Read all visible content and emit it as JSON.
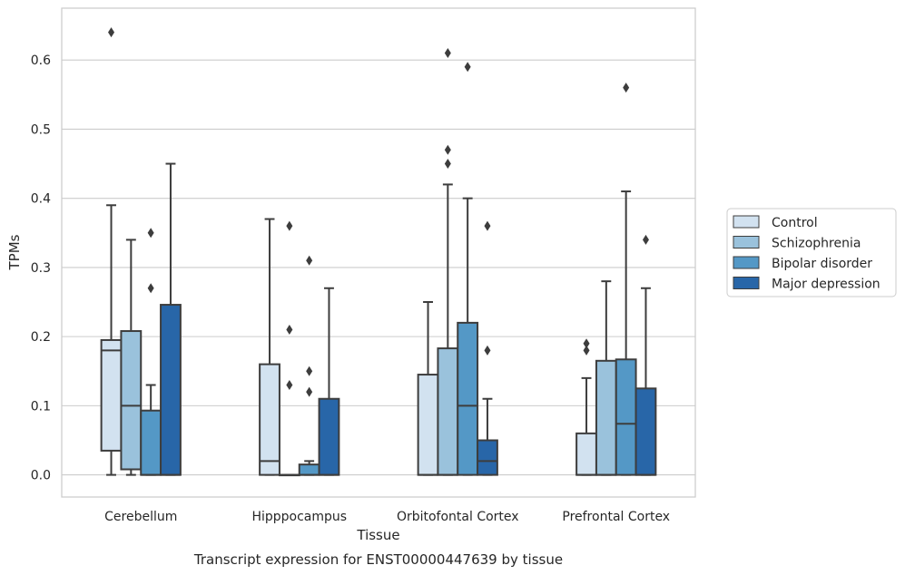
{
  "chart_data": {
    "type": "box",
    "title": "Transcript expression for ENST00000447639 by tissue",
    "xlabel": "Tissue",
    "ylabel": "TPMs",
    "ylim": [
      -0.032,
      0.675
    ],
    "yticks": [
      0.0,
      0.1,
      0.2,
      0.3,
      0.4,
      0.5,
      0.6
    ],
    "ytick_labels": [
      "0.0",
      "0.1",
      "0.2",
      "0.3",
      "0.4",
      "0.5",
      "0.6"
    ],
    "grid": true,
    "legend_position": "right",
    "categories": [
      "Cerebellum",
      "Hipppocampus",
      "Orbitofontal Cortex",
      "Prefrontal Cortex"
    ],
    "series": [
      {
        "name": "Control",
        "color": "#d2e2f0",
        "boxes": [
          {
            "q1": 0.035,
            "median": 0.18,
            "q3": 0.195,
            "whisker_low": 0.0,
            "whisker_high": 0.39,
            "outliers": [
              0.64
            ]
          },
          {
            "q1": 0.0,
            "median": 0.02,
            "q3": 0.16,
            "whisker_low": 0.0,
            "whisker_high": 0.37,
            "outliers": []
          },
          {
            "q1": 0.0,
            "median": 0.0,
            "q3": 0.145,
            "whisker_low": 0.0,
            "whisker_high": 0.25,
            "outliers": []
          },
          {
            "q1": 0.0,
            "median": 0.0,
            "q3": 0.06,
            "whisker_low": 0.0,
            "whisker_high": 0.14,
            "outliers": [
              0.18,
              0.19
            ]
          }
        ]
      },
      {
        "name": "Schizophrenia",
        "color": "#9ac2dc",
        "boxes": [
          {
            "q1": 0.008,
            "median": 0.1,
            "q3": 0.208,
            "whisker_low": 0.0,
            "whisker_high": 0.34,
            "outliers": []
          },
          {
            "q1": 0.0,
            "median": 0.0,
            "q3": 0.0,
            "whisker_low": 0.0,
            "whisker_high": 0.0,
            "outliers": [
              0.13,
              0.21,
              0.36
            ]
          },
          {
            "q1": 0.0,
            "median": 0.0,
            "q3": 0.183,
            "whisker_low": 0.0,
            "whisker_high": 0.42,
            "outliers": [
              0.45,
              0.47,
              0.61
            ]
          },
          {
            "q1": 0.0,
            "median": 0.0,
            "q3": 0.165,
            "whisker_low": 0.0,
            "whisker_high": 0.28,
            "outliers": []
          }
        ]
      },
      {
        "name": "Bipolar disorder",
        "color": "#5498c6",
        "boxes": [
          {
            "q1": 0.0,
            "median": 0.0,
            "q3": 0.093,
            "whisker_low": 0.0,
            "whisker_high": 0.13,
            "outliers": [
              0.27,
              0.35
            ]
          },
          {
            "q1": 0.0,
            "median": 0.0,
            "q3": 0.015,
            "whisker_low": 0.0,
            "whisker_high": 0.02,
            "outliers": [
              0.12,
              0.15,
              0.31
            ]
          },
          {
            "q1": 0.0,
            "median": 0.1,
            "q3": 0.22,
            "whisker_low": 0.0,
            "whisker_high": 0.4,
            "outliers": [
              0.59
            ]
          },
          {
            "q1": 0.0,
            "median": 0.074,
            "q3": 0.167,
            "whisker_low": 0.0,
            "whisker_high": 0.41,
            "outliers": [
              0.56
            ]
          }
        ]
      },
      {
        "name": "Major depression",
        "color": "#2866a8",
        "boxes": [
          {
            "q1": 0.0,
            "median": 0.0,
            "q3": 0.246,
            "whisker_low": 0.0,
            "whisker_high": 0.45,
            "outliers": []
          },
          {
            "q1": 0.0,
            "median": 0.0,
            "q3": 0.11,
            "whisker_low": 0.0,
            "whisker_high": 0.27,
            "outliers": []
          },
          {
            "q1": 0.0,
            "median": 0.02,
            "q3": 0.05,
            "whisker_low": 0.0,
            "whisker_high": 0.11,
            "outliers": [
              0.18,
              0.36
            ]
          },
          {
            "q1": 0.0,
            "median": 0.0,
            "q3": 0.125,
            "whisker_low": 0.0,
            "whisker_high": 0.27,
            "outliers": [
              0.34
            ]
          }
        ]
      }
    ]
  }
}
